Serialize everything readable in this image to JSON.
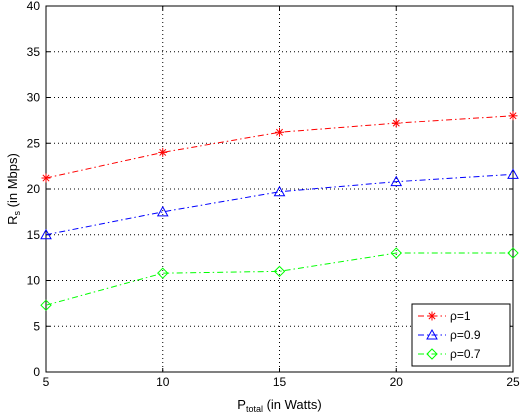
{
  "chart_data": {
    "type": "line",
    "x": [
      5,
      10,
      15,
      20,
      25
    ],
    "xlim": [
      5,
      25
    ],
    "ylim": [
      0,
      40
    ],
    "xticks": [
      5,
      10,
      15,
      20,
      25
    ],
    "yticks": [
      0,
      5,
      10,
      15,
      20,
      25,
      30,
      35,
      40
    ],
    "xlabel": {
      "main": "P",
      "sub": "total",
      "rest": " (in Watts)"
    },
    "ylabel": {
      "main": "R",
      "sub": "s",
      "rest": " (in Mbps)"
    },
    "grid": true,
    "legend_position": "bottom-right",
    "series": [
      {
        "name": "ρ=1",
        "values": [
          21.2,
          24.0,
          26.2,
          27.2,
          28.0
        ],
        "color": "#ff0000",
        "marker": "asterisk"
      },
      {
        "name": "ρ=0.9",
        "values": [
          15.0,
          17.5,
          19.7,
          20.8,
          21.6
        ],
        "color": "#0000ff",
        "marker": "triangle"
      },
      {
        "name": "ρ=0.7",
        "values": [
          7.3,
          10.8,
          11.0,
          13.0,
          13.0
        ],
        "color": "#00ff00",
        "marker": "diamond"
      }
    ]
  }
}
